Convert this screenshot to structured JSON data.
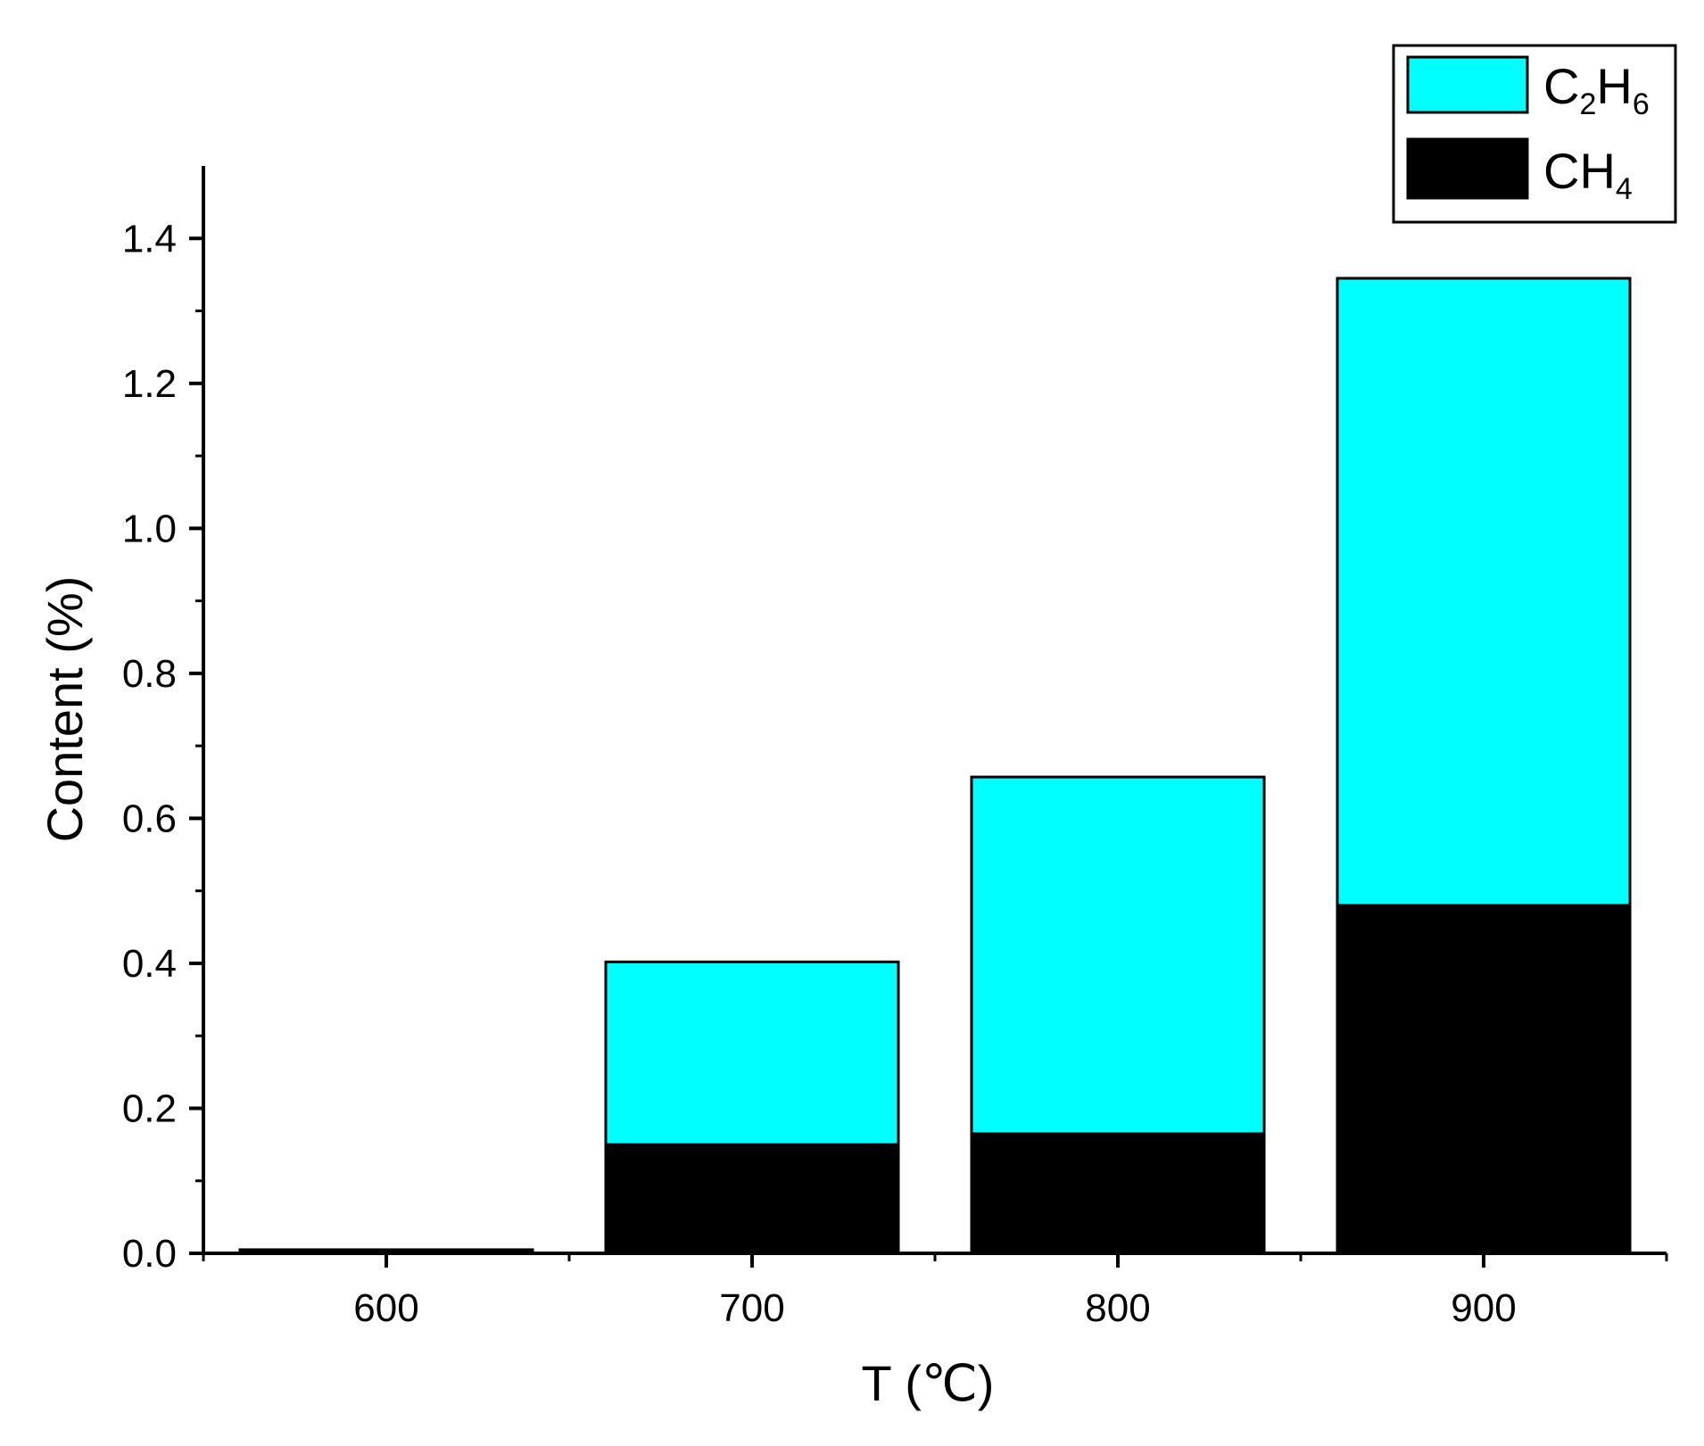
{
  "chart_data": {
    "type": "bar",
    "stacked": true,
    "categories": [
      "600",
      "700",
      "800",
      "900"
    ],
    "series": [
      {
        "name": "CH4",
        "label_main": "CH",
        "label_sub": "4",
        "color": "#000000",
        "values": [
          0.005,
          0.15,
          0.165,
          0.48
        ]
      },
      {
        "name": "C2H6",
        "label_parts": [
          "C",
          "2",
          "H",
          "6"
        ],
        "color": "#00FFFF",
        "values": [
          0.0,
          0.252,
          0.492,
          0.865
        ]
      }
    ],
    "xlabel": "T (℃)",
    "ylabel": "Content (%)",
    "ylim": [
      0,
      1.5
    ],
    "yticks": [
      "0.0",
      "0.2",
      "0.4",
      "0.6",
      "0.8",
      "1.0",
      "1.2",
      "1.4"
    ],
    "grid": false,
    "legend_position": "top-right"
  }
}
